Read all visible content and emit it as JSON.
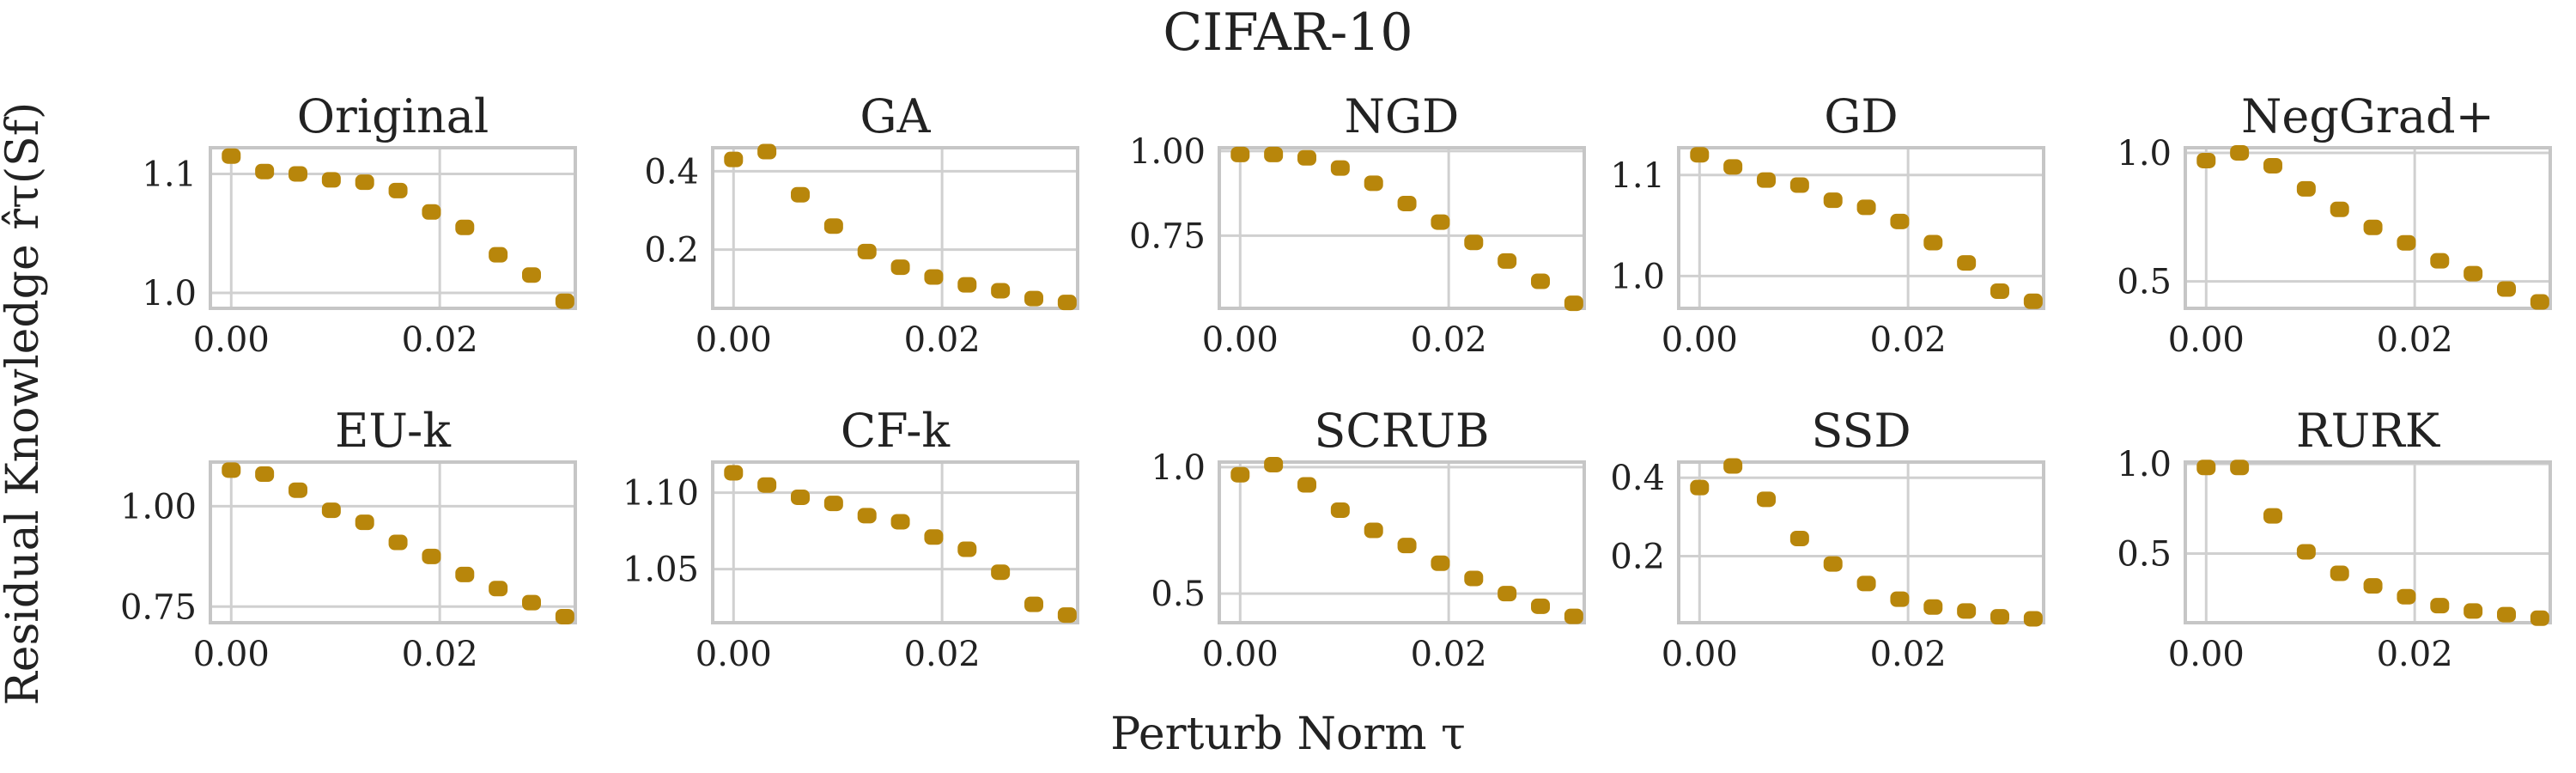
{
  "figure": {
    "title": "CIFAR-10",
    "ylabel": "Residual Knowledge r̂τ(Sf)",
    "xlabel": "Perturb Norm τ",
    "marker_color": "#b8860b"
  },
  "chart_data": [
    {
      "type": "scatter",
      "title": "Original",
      "x": [
        0.0,
        0.0032,
        0.0064,
        0.0096,
        0.0128,
        0.016,
        0.0192,
        0.0224,
        0.0256,
        0.0288,
        0.032
      ],
      "values": [
        1.115,
        1.102,
        1.1,
        1.095,
        1.093,
        1.086,
        1.068,
        1.055,
        1.032,
        1.015,
        0.993
      ],
      "xlim": [
        -0.002,
        0.033
      ],
      "ylim": [
        0.987,
        1.122
      ],
      "xticks": [
        0.0,
        0.02
      ],
      "xtick_labels": [
        "0.00",
        "0.02"
      ],
      "yticks": [
        1.0,
        1.1
      ],
      "ytick_labels": [
        "1.0",
        "1.1"
      ]
    },
    {
      "type": "scatter",
      "title": "GA",
      "x": [
        0.0,
        0.0032,
        0.0064,
        0.0096,
        0.0128,
        0.016,
        0.0192,
        0.0224,
        0.0256,
        0.0288,
        0.032
      ],
      "values": [
        0.43,
        0.45,
        0.34,
        0.26,
        0.195,
        0.155,
        0.13,
        0.11,
        0.095,
        0.075,
        0.065
      ],
      "xlim": [
        -0.002,
        0.033
      ],
      "ylim": [
        0.05,
        0.46
      ],
      "xticks": [
        0.0,
        0.02
      ],
      "xtick_labels": [
        "0.00",
        "0.02"
      ],
      "yticks": [
        0.2,
        0.4
      ],
      "ytick_labels": [
        "0.2",
        "0.4"
      ]
    },
    {
      "type": "scatter",
      "title": "NGD",
      "x": [
        0.0,
        0.0032,
        0.0064,
        0.0096,
        0.0128,
        0.016,
        0.0192,
        0.0224,
        0.0256,
        0.0288,
        0.032
      ],
      "values": [
        0.99,
        0.99,
        0.98,
        0.95,
        0.905,
        0.845,
        0.79,
        0.73,
        0.675,
        0.615,
        0.55
      ],
      "xlim": [
        -0.002,
        0.033
      ],
      "ylim": [
        0.535,
        1.01
      ],
      "xticks": [
        0.0,
        0.02
      ],
      "xtick_labels": [
        "0.00",
        "0.02"
      ],
      "yticks": [
        0.75,
        1.0
      ],
      "ytick_labels": [
        "0.75",
        "1.00"
      ]
    },
    {
      "type": "scatter",
      "title": "GD",
      "x": [
        0.0,
        0.0032,
        0.0064,
        0.0096,
        0.0128,
        0.016,
        0.0192,
        0.0224,
        0.0256,
        0.0288,
        0.032
      ],
      "values": [
        1.12,
        1.108,
        1.095,
        1.09,
        1.075,
        1.068,
        1.054,
        1.033,
        1.013,
        0.985,
        0.975
      ],
      "xlim": [
        -0.002,
        0.033
      ],
      "ylim": [
        0.968,
        1.127
      ],
      "xticks": [
        0.0,
        0.02
      ],
      "xtick_labels": [
        "0.00",
        "0.02"
      ],
      "yticks": [
        1.0,
        1.1
      ],
      "ytick_labels": [
        "1.0",
        "1.1"
      ]
    },
    {
      "type": "scatter",
      "title": "NegGrad+",
      "x": [
        0.0,
        0.0032,
        0.0064,
        0.0096,
        0.0128,
        0.016,
        0.0192,
        0.0224,
        0.0256,
        0.0288,
        0.032
      ],
      "values": [
        0.97,
        1.0,
        0.95,
        0.86,
        0.78,
        0.71,
        0.65,
        0.58,
        0.53,
        0.47,
        0.42
      ],
      "xlim": [
        -0.002,
        0.033
      ],
      "ylim": [
        0.395,
        1.02
      ],
      "xticks": [
        0.0,
        0.02
      ],
      "xtick_labels": [
        "0.00",
        "0.02"
      ],
      "yticks": [
        0.5,
        1.0
      ],
      "ytick_labels": [
        "0.5",
        "1.0"
      ]
    },
    {
      "type": "scatter",
      "title": "EU-k",
      "x": [
        0.0,
        0.0032,
        0.0064,
        0.0096,
        0.0128,
        0.016,
        0.0192,
        0.0224,
        0.0256,
        0.0288,
        0.032
      ],
      "values": [
        1.09,
        1.08,
        1.04,
        0.99,
        0.96,
        0.91,
        0.875,
        0.83,
        0.795,
        0.76,
        0.725
      ],
      "xlim": [
        -0.002,
        0.033
      ],
      "ylim": [
        0.71,
        1.11
      ],
      "xticks": [
        0.0,
        0.02
      ],
      "xtick_labels": [
        "0.00",
        "0.02"
      ],
      "yticks": [
        0.75,
        1.0
      ],
      "ytick_labels": [
        "0.75",
        "1.00"
      ]
    },
    {
      "type": "scatter",
      "title": "CF-k",
      "x": [
        0.0,
        0.0032,
        0.0064,
        0.0096,
        0.0128,
        0.016,
        0.0192,
        0.0224,
        0.0256,
        0.0288,
        0.032
      ],
      "values": [
        1.113,
        1.105,
        1.097,
        1.093,
        1.085,
        1.081,
        1.071,
        1.063,
        1.048,
        1.027,
        1.02
      ],
      "xlim": [
        -0.002,
        0.033
      ],
      "ylim": [
        1.015,
        1.12
      ],
      "xticks": [
        0.0,
        0.02
      ],
      "xtick_labels": [
        "0.00",
        "0.02"
      ],
      "yticks": [
        1.05,
        1.1
      ],
      "ytick_labels": [
        "1.05",
        "1.10"
      ]
    },
    {
      "type": "scatter",
      "title": "SCRUB",
      "x": [
        0.0,
        0.0032,
        0.0064,
        0.0096,
        0.0128,
        0.016,
        0.0192,
        0.0224,
        0.0256,
        0.0288,
        0.032
      ],
      "values": [
        0.97,
        1.01,
        0.93,
        0.83,
        0.75,
        0.69,
        0.62,
        0.56,
        0.5,
        0.45,
        0.41
      ],
      "xlim": [
        -0.002,
        0.033
      ],
      "ylim": [
        0.385,
        1.02
      ],
      "xticks": [
        0.0,
        0.02
      ],
      "xtick_labels": [
        "0.00",
        "0.02"
      ],
      "yticks": [
        0.5,
        1.0
      ],
      "ytick_labels": [
        "0.5",
        "1.0"
      ]
    },
    {
      "type": "scatter",
      "title": "SSD",
      "x": [
        0.0,
        0.0032,
        0.0064,
        0.0096,
        0.0128,
        0.016,
        0.0192,
        0.0224,
        0.0256,
        0.0288,
        0.032
      ],
      "values": [
        0.375,
        0.43,
        0.345,
        0.245,
        0.18,
        0.13,
        0.09,
        0.07,
        0.06,
        0.045,
        0.04
      ],
      "xlim": [
        -0.002,
        0.033
      ],
      "ylim": [
        0.03,
        0.44
      ],
      "xticks": [
        0.0,
        0.02
      ],
      "xtick_labels": [
        "0.00",
        "0.02"
      ],
      "yticks": [
        0.2,
        0.4
      ],
      "ytick_labels": [
        "0.2",
        "0.4"
      ]
    },
    {
      "type": "scatter",
      "title": "RURK",
      "x": [
        0.0,
        0.0032,
        0.0064,
        0.0096,
        0.0128,
        0.016,
        0.0192,
        0.0224,
        0.0256,
        0.0288,
        0.032
      ],
      "values": [
        0.98,
        0.98,
        0.71,
        0.51,
        0.39,
        0.32,
        0.26,
        0.21,
        0.18,
        0.16,
        0.14
      ],
      "xlim": [
        -0.002,
        0.033
      ],
      "ylim": [
        0.115,
        1.01
      ],
      "xticks": [
        0.0,
        0.02
      ],
      "xtick_labels": [
        "0.00",
        "0.02"
      ],
      "yticks": [
        0.5,
        1.0
      ],
      "ytick_labels": [
        "0.5",
        "1.0"
      ]
    }
  ]
}
